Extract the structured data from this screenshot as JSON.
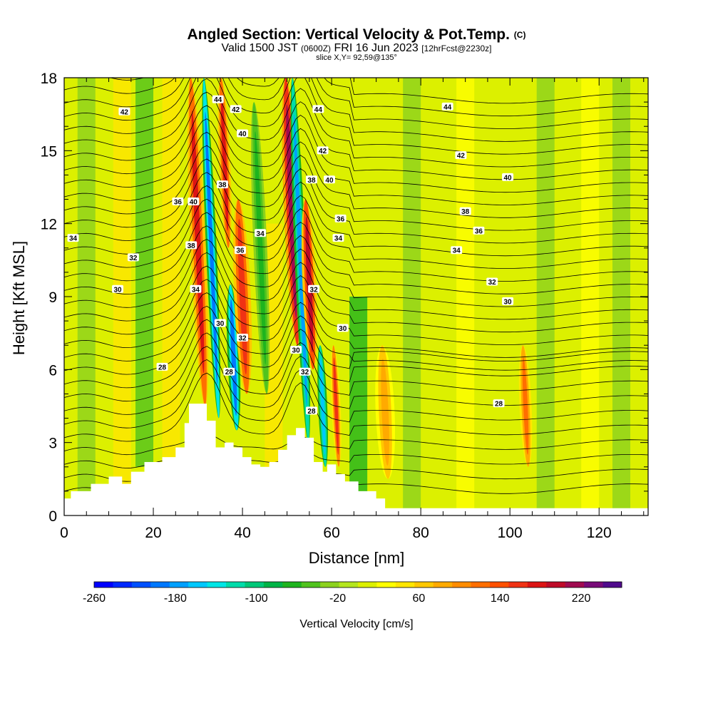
{
  "header": {
    "title": "Angled Section: Vertical Velocity & Pot.Temp.",
    "title_mark": "(C)",
    "subtitle_valid": "Valid 1500 JST",
    "subtitle_zulu": "(0600Z)",
    "subtitle_date": "FRI 16 Jun 2023",
    "subtitle_fcst": "[12hrFcst@2230z]",
    "slice": "slice X,Y= 92,59@135°"
  },
  "chart_data": {
    "type": "heatmap",
    "title": "Angled Section: Vertical Velocity & Pot.Temp.",
    "xlabel": "Distance [nm]",
    "ylabel": "Height [Kft MSL]",
    "xlim": [
      0,
      131
    ],
    "ylim": [
      0,
      18
    ],
    "x_ticks": [
      "0",
      "20",
      "40",
      "60",
      "80",
      "100",
      "120"
    ],
    "y_ticks": [
      "0",
      "3",
      "6",
      "9",
      "12",
      "15",
      "18"
    ],
    "colorbar": {
      "label": "Vertical Velocity [cm/s]",
      "tick_labels": [
        "-260",
        "-180",
        "-100",
        "-20",
        "60",
        "140",
        "220"
      ],
      "range": [
        -260,
        260
      ],
      "colors": [
        "#0000ff",
        "#0028ff",
        "#0050ff",
        "#0078ff",
        "#00a0ff",
        "#00c8ff",
        "#00e6e6",
        "#00dcaa",
        "#00c878",
        "#00b446",
        "#1eb41e",
        "#50c31e",
        "#8cd21e",
        "#b4e61e",
        "#dcf000",
        "#ffff00",
        "#ffe600",
        "#ffc800",
        "#ffaa00",
        "#ff8c00",
        "#ff6e00",
        "#ff5000",
        "#f03214",
        "#dc1414",
        "#be0a28",
        "#a00a50",
        "#780a78",
        "#500a8c"
      ]
    },
    "terrain_kft": [
      [
        0,
        0.7
      ],
      [
        1.5,
        1.0
      ],
      [
        6,
        1.3
      ],
      [
        10,
        1.6
      ],
      [
        13,
        1.3
      ],
      [
        15,
        1.8
      ],
      [
        18,
        2.2
      ],
      [
        22,
        2.4
      ],
      [
        25,
        2.8
      ],
      [
        27,
        3.8
      ],
      [
        28,
        4.6
      ],
      [
        31,
        4.6
      ],
      [
        32,
        3.9
      ],
      [
        34,
        2.8
      ],
      [
        36,
        3.0
      ],
      [
        38,
        2.8
      ],
      [
        40,
        2.4
      ],
      [
        42,
        2.1
      ],
      [
        44,
        2.0
      ],
      [
        46,
        2.2
      ],
      [
        48,
        2.7
      ],
      [
        50,
        3.3
      ],
      [
        52,
        3.6
      ],
      [
        54,
        3.2
      ],
      [
        56,
        2.2
      ],
      [
        58,
        1.8
      ],
      [
        59,
        2.1
      ],
      [
        61,
        1.7
      ],
      [
        63,
        1.4
      ],
      [
        66,
        1.0
      ],
      [
        70,
        0.7
      ],
      [
        72,
        0.3
      ],
      [
        131,
        0.3
      ]
    ],
    "theta_contours_c": [
      "26",
      "28",
      "30",
      "32",
      "34",
      "36",
      "38",
      "40",
      "42",
      "44"
    ],
    "theta_contour_labels": [
      {
        "text": "42",
        "x": 13.5,
        "y": 16.6
      },
      {
        "text": "34",
        "x": 2,
        "y": 11.4
      },
      {
        "text": "32",
        "x": 15.5,
        "y": 10.6
      },
      {
        "text": "30",
        "x": 12,
        "y": 9.3
      },
      {
        "text": "28",
        "x": 22,
        "y": 6.1
      },
      {
        "text": "36",
        "x": 25.5,
        "y": 12.9
      },
      {
        "text": "38",
        "x": 28.5,
        "y": 11.1
      },
      {
        "text": "40",
        "x": 29,
        "y": 12.9
      },
      {
        "text": "34",
        "x": 29.5,
        "y": 9.3
      },
      {
        "text": "44",
        "x": 34.5,
        "y": 17.1
      },
      {
        "text": "42",
        "x": 38.5,
        "y": 16.7
      },
      {
        "text": "40",
        "x": 40,
        "y": 15.7
      },
      {
        "text": "38",
        "x": 35.5,
        "y": 13.6
      },
      {
        "text": "36",
        "x": 39.5,
        "y": 10.9
      },
      {
        "text": "34",
        "x": 44,
        "y": 11.6
      },
      {
        "text": "30",
        "x": 35,
        "y": 7.9
      },
      {
        "text": "28",
        "x": 37,
        "y": 5.9
      },
      {
        "text": "32",
        "x": 40,
        "y": 7.3
      },
      {
        "text": "44",
        "x": 57,
        "y": 16.7
      },
      {
        "text": "42",
        "x": 58,
        "y": 15.0
      },
      {
        "text": "40",
        "x": 59.5,
        "y": 13.8
      },
      {
        "text": "38",
        "x": 55.5,
        "y": 13.8
      },
      {
        "text": "36",
        "x": 62,
        "y": 12.2
      },
      {
        "text": "34",
        "x": 61.5,
        "y": 11.4
      },
      {
        "text": "32",
        "x": 56,
        "y": 9.3
      },
      {
        "text": "30",
        "x": 52,
        "y": 6.8
      },
      {
        "text": "32",
        "x": 54,
        "y": 5.9
      },
      {
        "text": "28",
        "x": 55.5,
        "y": 4.3
      },
      {
        "text": "30",
        "x": 62.5,
        "y": 7.7
      },
      {
        "text": "44",
        "x": 86,
        "y": 16.8
      },
      {
        "text": "42",
        "x": 89,
        "y": 14.8
      },
      {
        "text": "40",
        "x": 99.5,
        "y": 13.9
      },
      {
        "text": "38",
        "x": 90,
        "y": 12.5
      },
      {
        "text": "36",
        "x": 93,
        "y": 11.7
      },
      {
        "text": "34",
        "x": 88,
        "y": 10.9
      },
      {
        "text": "32",
        "x": 96,
        "y": 9.6
      },
      {
        "text": "30",
        "x": 99.5,
        "y": 8.8
      },
      {
        "text": "28",
        "x": 97.5,
        "y": 4.6
      }
    ],
    "velocity_bands_cm_s": [
      {
        "x": 30,
        "y0": 4.5,
        "y1": 18,
        "w": 2.0,
        "v": 180
      },
      {
        "x": 33,
        "y0": 4.0,
        "y1": 18,
        "w": 1.4,
        "v": -200
      },
      {
        "x": 36,
        "y0": 11,
        "y1": 18,
        "w": 1.5,
        "v": 180
      },
      {
        "x": 38,
        "y0": 3.5,
        "y1": 9.5,
        "w": 1.6,
        "v": -200
      },
      {
        "x": 40,
        "y0": 5,
        "y1": 13,
        "w": 2.2,
        "v": 160
      },
      {
        "x": 44,
        "y0": 5,
        "y1": 17,
        "w": 1.8,
        "v": -60
      },
      {
        "x": 51,
        "y0": 7,
        "y1": 18,
        "w": 2.0,
        "v": 220
      },
      {
        "x": 53,
        "y0": 3,
        "y1": 18,
        "w": 1.5,
        "v": -180
      },
      {
        "x": 55,
        "y0": 6,
        "y1": 13,
        "w": 1.8,
        "v": 190
      },
      {
        "x": 58,
        "y0": 2,
        "y1": 7,
        "w": 1.2,
        "v": -160
      },
      {
        "x": 61,
        "y0": 2,
        "y1": 7,
        "w": 1.2,
        "v": 150
      },
      {
        "x": 72,
        "y0": 1.5,
        "y1": 7,
        "w": 2.5,
        "v": 90
      },
      {
        "x": 103.5,
        "y0": 2,
        "y1": 7,
        "w": 1.6,
        "v": 120
      }
    ]
  }
}
